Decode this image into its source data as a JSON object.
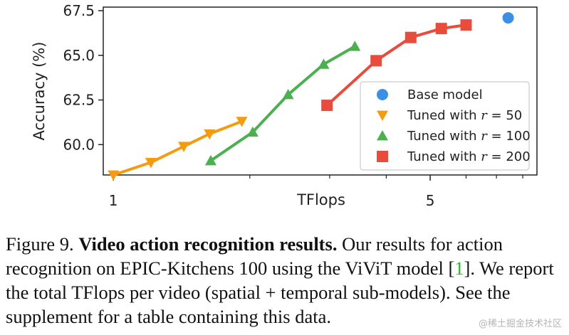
{
  "chart_data": {
    "type": "scatter",
    "xlabel": "TFlops",
    "ylabel": "Accuracy (%)",
    "xscale": "log",
    "xlim": [
      0.95,
      8.6
    ],
    "ylim": [
      58.3,
      67.7
    ],
    "x_ticks_labeled": [
      {
        "value": 1,
        "label": "1"
      },
      {
        "value": 5,
        "label": "5"
      }
    ],
    "x_ticks_minor": [
      2,
      3,
      4,
      6,
      7,
      8
    ],
    "y_ticks": [
      {
        "value": 60.0,
        "label": "60.0"
      },
      {
        "value": 62.5,
        "label": "62.5"
      },
      {
        "value": 65.0,
        "label": "65.0"
      },
      {
        "value": 67.5,
        "label": "67.5"
      }
    ],
    "legend_position": "lower-right",
    "series": [
      {
        "name": "Base model",
        "marker": "circle",
        "line": false,
        "color": "#3d8fe5",
        "points": [
          [
            7.43,
            67.1
          ]
        ]
      },
      {
        "name": "Tuned with r = 50",
        "name_prefix": "Tuned with ",
        "name_var": "r",
        "name_suffix": " = 50",
        "marker": "triangle-down",
        "line": true,
        "color": "#f39c12",
        "points": [
          [
            1.0,
            58.3
          ],
          [
            1.21,
            59.0
          ],
          [
            1.43,
            59.9
          ],
          [
            1.63,
            60.6
          ],
          [
            1.92,
            61.3
          ]
        ]
      },
      {
        "name": "Tuned with r = 100",
        "name_prefix": "Tuned with ",
        "name_var": "r",
        "name_suffix": " = 100",
        "marker": "triangle-up",
        "line": true,
        "color": "#4caf50",
        "points": [
          [
            1.64,
            59.1
          ],
          [
            2.03,
            60.7
          ],
          [
            2.43,
            62.8
          ],
          [
            2.91,
            64.5
          ],
          [
            3.41,
            65.5
          ]
        ]
      },
      {
        "name": "Tuned with r = 200",
        "name_prefix": "Tuned with ",
        "name_var": "r",
        "name_suffix": " = 200",
        "marker": "square",
        "line": true,
        "color": "#e74c3c",
        "points": [
          [
            2.96,
            62.2
          ],
          [
            3.8,
            64.7
          ],
          [
            4.53,
            66.0
          ],
          [
            5.29,
            66.5
          ],
          [
            6.0,
            66.7
          ]
        ]
      }
    ]
  },
  "caption": {
    "figure_label": "Figure 9. ",
    "bold_title": "Video action recognition results.",
    "text_before_ref": " Our results for action recognition on EPIC-Kitchens 100 using the ViViT model [",
    "ref": "1",
    "text_after_ref": "]. We report the total TFlops per video (spatial + temporal sub-models). See the supplement for a table containing this data."
  },
  "watermark": "@稀土掘金技术社区"
}
